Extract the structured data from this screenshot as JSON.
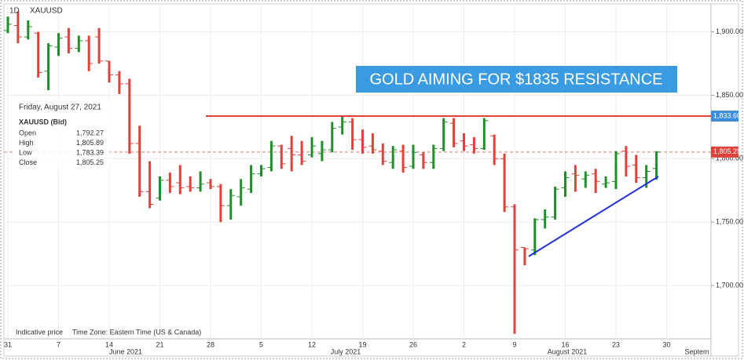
{
  "chart_data": {
    "type": "ohlc",
    "interval": "1D",
    "symbol": "XAUUSD",
    "headline": "GOLD AIMING FOR $1835 RESISTANCE",
    "info": {
      "date": "Friday, August 27, 2021",
      "symbol": "XAUUSD (Bid)",
      "fields": [
        {
          "label": "Open",
          "value": "1,792.27"
        },
        {
          "label": "High",
          "value": "1,805.89"
        },
        {
          "label": "Low",
          "value": "1,783.39"
        },
        {
          "label": "Close",
          "value": "1,805.25"
        }
      ]
    },
    "footer": [
      "Indicative price",
      "Time Zone: Eastern Time (US & Canada)"
    ],
    "up_color": "#1f8f2a",
    "down_color": "#e2403a",
    "categories": [
      "31",
      null,
      null,
      null,
      null,
      "7",
      null,
      null,
      null,
      null,
      "14",
      null,
      null,
      null,
      null,
      "21",
      null,
      null,
      null,
      null,
      "28",
      null,
      null,
      null,
      null,
      "5",
      null,
      null,
      null,
      null,
      "12",
      null,
      null,
      null,
      null,
      "19",
      null,
      null,
      null,
      null,
      "26",
      null,
      null,
      null,
      null,
      "2",
      null,
      null,
      null,
      null,
      "9",
      null,
      null,
      null,
      null,
      "16",
      null,
      null,
      null,
      null,
      "23",
      null,
      null,
      null,
      null,
      "30"
    ],
    "months": [
      "June 2021",
      "July 2021",
      "August 2021",
      "Septem"
    ],
    "ohlc": [
      [
        1901,
        1912,
        1899,
        1906
      ],
      [
        1905,
        1916,
        1891,
        1896
      ],
      [
        1896,
        1909,
        1894,
        1904
      ],
      [
        1899,
        1900,
        1864,
        1868
      ],
      [
        1869,
        1891,
        1854,
        1889
      ],
      [
        1888,
        1899,
        1881,
        1895
      ],
      [
        1896,
        1903,
        1883,
        1887
      ],
      [
        1887,
        1897,
        1884,
        1893
      ],
      [
        1893,
        1897,
        1869,
        1875
      ],
      [
        1896,
        1903,
        1875,
        1877
      ],
      [
        1877,
        1877,
        1860,
        1866
      ],
      [
        1866,
        1869,
        1851,
        1859
      ],
      [
        1859,
        1863,
        1804,
        1812
      ],
      [
        1812,
        1826,
        1770,
        1774
      ],
      [
        1774,
        1798,
        1761,
        1764
      ],
      [
        1769,
        1786,
        1767,
        1783
      ],
      [
        1783,
        1789,
        1773,
        1778
      ],
      [
        1781,
        1795,
        1772,
        1777
      ],
      [
        1778,
        1786,
        1774,
        1777
      ],
      [
        1777,
        1790,
        1774,
        1780
      ],
      [
        1781,
        1784,
        1776,
        1778
      ],
      [
        1778,
        1780,
        1750,
        1763
      ],
      [
        1763,
        1776,
        1752,
        1771
      ],
      [
        1770,
        1784,
        1763,
        1777
      ],
      [
        1776,
        1795,
        1773,
        1788
      ],
      [
        1788,
        1795,
        1786,
        1792
      ],
      [
        1793,
        1814,
        1790,
        1810
      ],
      [
        1810,
        1811,
        1792,
        1796
      ],
      [
        1808,
        1818,
        1790,
        1803
      ],
      [
        1803,
        1814,
        1795,
        1798
      ],
      [
        1803,
        1817,
        1801,
        1810
      ],
      [
        1804,
        1814,
        1798,
        1807
      ],
      [
        1807,
        1829,
        1805,
        1824
      ],
      [
        1825,
        1833,
        1819,
        1829
      ],
      [
        1829,
        1832,
        1807,
        1815
      ],
      [
        1815,
        1823,
        1804,
        1809
      ],
      [
        1810,
        1820,
        1804,
        1807
      ],
      [
        1806,
        1812,
        1795,
        1798
      ],
      [
        1797,
        1810,
        1792,
        1807
      ],
      [
        1806,
        1811,
        1789,
        1793
      ],
      [
        1794,
        1811,
        1792,
        1805
      ],
      [
        1803,
        1805,
        1792,
        1797
      ],
      [
        1797,
        1811,
        1792,
        1808
      ],
      [
        1808,
        1832,
        1806,
        1829
      ],
      [
        1828,
        1832,
        1809,
        1812
      ],
      [
        1814,
        1820,
        1806,
        1810
      ],
      [
        1811,
        1817,
        1804,
        1808
      ],
      [
        1808,
        1832,
        1807,
        1830
      ],
      [
        1818,
        1819,
        1795,
        1800
      ],
      [
        1800,
        1804,
        1758,
        1762
      ],
      [
        1762,
        1764,
        1662,
        1728
      ],
      [
        1730,
        1730,
        1716,
        1729
      ],
      [
        1728,
        1753,
        1724,
        1752
      ],
      [
        1752,
        1760,
        1745,
        1754
      ],
      [
        1754,
        1778,
        1752,
        1776
      ],
      [
        1777,
        1790,
        1770,
        1785
      ],
      [
        1788,
        1795,
        1774,
        1787
      ],
      [
        1784,
        1790,
        1777,
        1787
      ],
      [
        1788,
        1792,
        1773,
        1782
      ],
      [
        1780,
        1786,
        1777,
        1781
      ],
      [
        1782,
        1806,
        1776,
        1804
      ],
      [
        1806,
        1810,
        1786,
        1794
      ],
      [
        1795,
        1803,
        1781,
        1785
      ],
      [
        1785,
        1795,
        1777,
        1790
      ],
      [
        1792.27,
        1805.89,
        1783.39,
        1805.25
      ]
    ],
    "resistance": {
      "value": 1833.6,
      "label": "1,833.60",
      "color": "#e2403a",
      "label_color": "#3d8fdc"
    },
    "last_price": {
      "value": 1805.25,
      "label": "1,805.25",
      "color": "#e2403a"
    },
    "trendline": {
      "values": [
        1723,
        1786
      ],
      "color": "#2233dd"
    },
    "ylim": [
      1658,
      1922
    ],
    "yticks": [
      {
        "value": 1700,
        "label": "1,700.00"
      },
      {
        "value": 1750,
        "label": "1,750.00"
      },
      {
        "value": 1800,
        "label": "1,800.00"
      },
      {
        "value": 1850,
        "label": "1,850.00"
      },
      {
        "value": 1900,
        "label": "1,900.00"
      }
    ],
    "grid": true
  }
}
